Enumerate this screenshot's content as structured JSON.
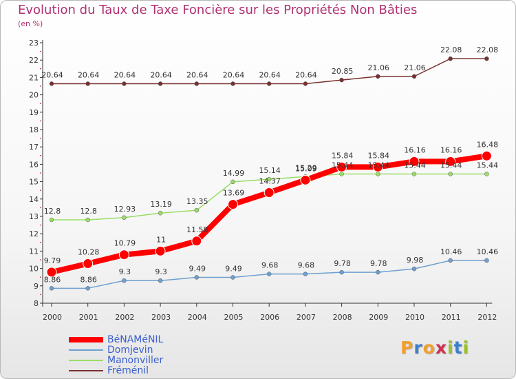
{
  "title": "Evolution du Taux de Taxe Foncière sur les Propriétés Non Bâties",
  "subtitle": "(en %)",
  "logo": {
    "letters": [
      "P",
      "r",
      "o",
      "x",
      "i",
      "t",
      "i"
    ],
    "colors": [
      "#f0a030",
      "#3a7fd0",
      "#f0a030",
      "#d03050",
      "#9ac030",
      "#3a7fd0",
      "#9ac030"
    ]
  },
  "chart_data": {
    "type": "line",
    "categories": [
      "2000",
      "2001",
      "2002",
      "2003",
      "2004",
      "2005",
      "2006",
      "2007",
      "2008",
      "2009",
      "2010",
      "2011",
      "2012"
    ],
    "ylim": [
      8,
      23
    ],
    "yticks": [
      "8",
      "9",
      "10",
      "11",
      "12",
      "13",
      "14",
      "15",
      "16",
      "17",
      "18",
      "19",
      "20",
      "21",
      "22",
      "23"
    ],
    "grid": false,
    "legend_position": "bottom-left",
    "series": [
      {
        "name": "BéNAMéNIL",
        "color": "#ff0000",
        "emphasis": true,
        "values": [
          9.79,
          10.28,
          10.79,
          11,
          11.58,
          13.69,
          14.37,
          15.09,
          15.84,
          15.84,
          16.16,
          16.16,
          16.48
        ],
        "labels": [
          "9.79",
          "10.28",
          "10.79",
          "11",
          "11.58",
          "13.69",
          "14.37",
          "15.09",
          "15.84",
          "15.84",
          "16.16",
          "16.16",
          "16.48"
        ]
      },
      {
        "name": "Domjevin",
        "color": "#6fa0d0",
        "emphasis": false,
        "values": [
          8.86,
          8.86,
          9.3,
          9.3,
          9.49,
          9.49,
          9.68,
          9.68,
          9.78,
          9.78,
          9.98,
          10.46,
          10.46
        ],
        "labels": [
          "8.86",
          "8.86",
          "9.3",
          "9.3",
          "9.49",
          "9.49",
          "9.68",
          "9.68",
          "9.78",
          "9.78",
          "9.98",
          "10.46",
          "10.46"
        ]
      },
      {
        "name": "Manonviller",
        "color": "#99dd66",
        "emphasis": false,
        "values": [
          12.8,
          12.8,
          12.93,
          13.19,
          13.35,
          14.99,
          15.14,
          15.29,
          15.44,
          15.44,
          15.44,
          15.44,
          15.44
        ],
        "labels": [
          "12.8",
          "12.8",
          "12.93",
          "13.19",
          "13.35",
          "14.99",
          "15.14",
          "15.29",
          "15.44",
          "15.44",
          "15.44",
          "15.44",
          "15.44"
        ]
      },
      {
        "name": "Fréménil",
        "color": "#7a3030",
        "emphasis": false,
        "values": [
          20.64,
          20.64,
          20.64,
          20.64,
          20.64,
          20.64,
          20.64,
          20.64,
          20.85,
          21.06,
          21.06,
          22.08,
          22.08
        ],
        "labels": [
          "20.64",
          "20.64",
          "20.64",
          "20.64",
          "20.64",
          "20.64",
          "20.64",
          "20.64",
          "20.85",
          "21.06",
          "21.06",
          "22.08",
          "22.08"
        ]
      }
    ]
  }
}
